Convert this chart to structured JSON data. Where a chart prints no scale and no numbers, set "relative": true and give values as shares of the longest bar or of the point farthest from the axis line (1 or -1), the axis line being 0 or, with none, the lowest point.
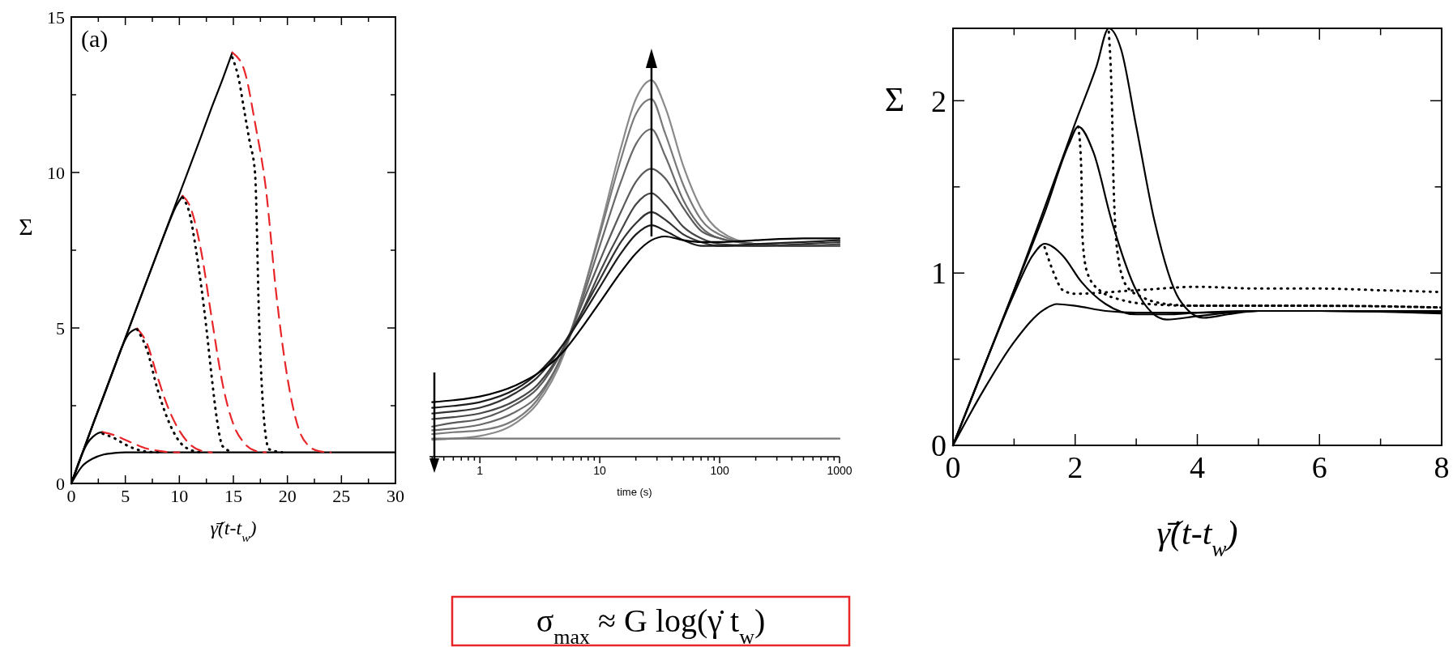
{
  "chart_data": [
    {
      "type": "line",
      "xlabel": "γ̇̄(t-t$_{w}$)",
      "ylabel": "Σ",
      "annotations": [
        "(a)"
      ],
      "xlim": [
        0,
        30
      ],
      "ylim": [
        0,
        15
      ],
      "xticks": [
        0,
        {
          "value": 2.5,
          "label": null
        },
        5,
        {
          "value": 7.5,
          "label": null
        },
        10,
        {
          "value": 12.5,
          "label": null
        },
        15,
        {
          "value": 17.5,
          "label": null
        },
        20,
        {
          "value": 22.5,
          "label": null
        },
        25,
        {
          "value": 27.5,
          "label": null
        },
        30
      ],
      "yticks": [
        0,
        {
          "value": 2.5,
          "label": null
        },
        5,
        {
          "value": 7.5,
          "label": null
        },
        10,
        {
          "value": 12.5,
          "label": null
        },
        15
      ],
      "series": [
        {
          "color": "#000000",
          "line_style": "solid",
          "x": [
            0,
            1,
            2,
            3,
            4,
            5,
            7,
            10,
            15,
            20,
            30
          ],
          "values": [
            0,
            0.55,
            0.8,
            0.93,
            0.98,
            1.0,
            1.0,
            1.0,
            1.0,
            1.0,
            1.0
          ]
        },
        {
          "color": "#000000",
          "line_style": "solid",
          "x": [
            0,
            0.5,
            1,
            1.5,
            2,
            2.5,
            2.9
          ],
          "values": [
            0,
            0.5,
            0.95,
            1.3,
            1.5,
            1.62,
            1.65
          ]
        },
        {
          "color": "#000000",
          "line_style": "solid",
          "x": [
            0,
            1,
            2,
            3,
            4,
            4.7,
            5.3,
            6.1
          ],
          "values": [
            0,
            0.95,
            1.9,
            2.8,
            3.75,
            4.4,
            4.8,
            4.98
          ]
        },
        {
          "color": "#000000",
          "line_style": "solid",
          "x": [
            0,
            2,
            4,
            6,
            8,
            9,
            9.6,
            10.3
          ],
          "values": [
            0,
            1.9,
            3.75,
            5.6,
            7.45,
            8.35,
            8.85,
            9.25
          ]
        },
        {
          "color": "#000000",
          "line_style": "solid",
          "x": [
            0,
            2,
            4,
            6,
            8,
            10,
            12,
            13,
            14,
            14.9
          ],
          "values": [
            0,
            1.9,
            3.75,
            5.6,
            7.45,
            9.3,
            11.15,
            12.1,
            13.0,
            13.86
          ]
        },
        {
          "color": "#e8262a",
          "line_style": "dashed",
          "x": [
            2.9,
            4,
            5,
            6,
            7,
            8,
            9,
            10
          ],
          "values": [
            1.65,
            1.55,
            1.4,
            1.25,
            1.12,
            1.05,
            1.01,
            1.0
          ]
        },
        {
          "color": "#000000",
          "line_style": "dotted",
          "x": [
            2.9,
            4,
            5,
            6,
            7,
            8
          ],
          "values": [
            1.6,
            1.45,
            1.25,
            1.1,
            1.02,
            1.0
          ]
        },
        {
          "color": "#e8262a",
          "line_style": "dashed",
          "x": [
            6.1,
            7,
            8,
            9,
            10,
            11,
            12,
            13
          ],
          "values": [
            4.98,
            4.5,
            3.4,
            2.4,
            1.7,
            1.25,
            1.05,
            1.0
          ]
        },
        {
          "color": "#000000",
          "line_style": "dotted",
          "x": [
            6.1,
            7,
            8,
            9,
            10,
            11,
            12
          ],
          "values": [
            4.95,
            4.3,
            3.0,
            2.0,
            1.35,
            1.08,
            1.0
          ]
        },
        {
          "color": "#e8262a",
          "line_style": "dashed",
          "x": [
            10.3,
            11,
            12,
            13,
            14,
            15,
            16,
            17,
            18
          ],
          "values": [
            9.25,
            8.9,
            7.5,
            5.3,
            3.2,
            1.9,
            1.3,
            1.05,
            1.0
          ]
        },
        {
          "color": "#000000",
          "line_style": "dotted",
          "x": [
            10.3,
            11,
            11.5,
            12,
            12.5,
            13,
            13.5,
            14,
            15
          ],
          "values": [
            9.2,
            8.6,
            7.6,
            6.4,
            5.0,
            3.4,
            2.0,
            1.2,
            1.0
          ]
        },
        {
          "color": "#e8262a",
          "line_style": "dashed",
          "x": [
            14.9,
            16,
            17,
            18,
            19,
            20,
            21,
            22,
            23,
            24
          ],
          "values": [
            13.86,
            13.3,
            11.6,
            9.5,
            6.0,
            3.4,
            1.8,
            1.2,
            1.03,
            1.0
          ]
        },
        {
          "color": "#000000",
          "line_style": "dotted",
          "x": [
            14.9,
            15.5,
            16,
            16.5,
            17,
            17.4,
            17.8,
            18.3,
            19.5
          ],
          "values": [
            13.7,
            13.0,
            12.0,
            11.0,
            10.0,
            5.0,
            2.2,
            1.1,
            1.0
          ]
        }
      ]
    },
    {
      "type": "line",
      "xlabel": "time (s)",
      "relative": true,
      "log": "x",
      "annotations": [
        "σ$_{max}$ ≈ G log(γ̇ t$_{w}$)"
      ],
      "xlim": [
        0.38,
        1000
      ],
      "xticks": [
        {
          "value": 0.4,
          "label": null
        },
        {
          "value": 0.5,
          "label": null
        },
        {
          "value": 0.6,
          "label": null
        },
        {
          "value": 0.7,
          "label": null
        },
        {
          "value": 0.8,
          "label": null
        },
        {
          "value": 0.9,
          "label": null
        },
        1,
        {
          "value": 2,
          "label": null
        },
        {
          "value": 3,
          "label": null
        },
        {
          "value": 4,
          "label": null
        },
        {
          "value": 5,
          "label": null
        },
        {
          "value": 6,
          "label": null
        },
        {
          "value": 7,
          "label": null
        },
        {
          "value": 8,
          "label": null
        },
        {
          "value": 9,
          "label": null
        },
        10,
        {
          "value": 20,
          "label": null
        },
        {
          "value": 30,
          "label": null
        },
        {
          "value": 40,
          "label": null
        },
        {
          "value": 50,
          "label": null
        },
        {
          "value": 60,
          "label": null
        },
        {
          "value": 70,
          "label": null
        },
        {
          "value": 80,
          "label": null
        },
        {
          "value": 90,
          "label": null
        },
        100,
        {
          "value": 200,
          "label": null
        },
        {
          "value": 300,
          "label": null
        },
        {
          "value": 400,
          "label": null
        },
        {
          "value": 500,
          "label": null
        },
        {
          "value": 600,
          "label": null
        },
        {
          "value": 700,
          "label": null
        },
        {
          "value": 800,
          "label": null
        },
        {
          "value": 900,
          "label": null
        },
        1000
      ],
      "series": [
        {
          "color": "#8a8a8a",
          "x": [
            0.4,
            0.6,
            1,
            2,
            3,
            5,
            7,
            10,
            15,
            20,
            27,
            35,
            50,
            70,
            100,
            200,
            500,
            1000
          ],
          "values": [
            0.045,
            0.048,
            0.055,
            0.09,
            0.14,
            0.27,
            0.42,
            0.6,
            0.82,
            0.95,
            1.0,
            0.93,
            0.77,
            0.66,
            0.6,
            0.565,
            0.56,
            0.56
          ]
        },
        {
          "color": "#7a7a7a",
          "x": [
            0.4,
            0.6,
            1,
            2,
            3,
            5,
            7,
            10,
            15,
            20,
            27,
            35,
            50,
            70,
            100,
            200,
            500,
            1000
          ],
          "values": [
            0.06,
            0.065,
            0.07,
            0.1,
            0.15,
            0.28,
            0.42,
            0.59,
            0.79,
            0.91,
            0.95,
            0.86,
            0.72,
            0.63,
            0.59,
            0.565,
            0.56,
            0.56
          ]
        },
        {
          "color": "#6a6a6a",
          "x": [
            0.4,
            0.6,
            1,
            2,
            3,
            5,
            7,
            10,
            15,
            20,
            27,
            35,
            50,
            70,
            100,
            200,
            500,
            1000
          ],
          "values": [
            0.07,
            0.075,
            0.085,
            0.12,
            0.16,
            0.28,
            0.41,
            0.56,
            0.73,
            0.83,
            0.87,
            0.8,
            0.68,
            0.61,
            0.58,
            0.565,
            0.56,
            0.56
          ]
        },
        {
          "color": "#5a5a5a",
          "x": [
            0.4,
            0.6,
            1,
            2,
            3,
            5,
            7,
            10,
            15,
            20,
            27,
            35,
            50,
            70,
            100,
            200,
            500,
            1000
          ],
          "values": [
            0.08,
            0.09,
            0.1,
            0.14,
            0.18,
            0.29,
            0.4,
            0.52,
            0.65,
            0.73,
            0.765,
            0.74,
            0.66,
            0.6,
            0.58,
            0.565,
            0.56,
            0.56
          ]
        },
        {
          "color": "#474747",
          "x": [
            0.4,
            0.6,
            1,
            2,
            3,
            5,
            7,
            10,
            15,
            20,
            27,
            35,
            50,
            70,
            100,
            200,
            500,
            1000
          ],
          "values": [
            0.1,
            0.105,
            0.115,
            0.15,
            0.19,
            0.29,
            0.38,
            0.49,
            0.6,
            0.67,
            0.7,
            0.67,
            0.61,
            0.58,
            0.565,
            0.56,
            0.56,
            0.565
          ]
        },
        {
          "color": "#333333",
          "x": [
            0.4,
            0.6,
            1,
            2,
            3,
            5,
            7,
            10,
            15,
            20,
            27,
            35,
            50,
            70,
            100,
            200,
            500,
            1000
          ],
          "values": [
            0.115,
            0.12,
            0.13,
            0.17,
            0.21,
            0.3,
            0.38,
            0.47,
            0.57,
            0.62,
            0.65,
            0.63,
            0.59,
            0.57,
            0.56,
            0.56,
            0.565,
            0.57
          ]
        },
        {
          "color": "#1c1c1c",
          "x": [
            0.4,
            0.6,
            1,
            2,
            3,
            5,
            7,
            10,
            15,
            20,
            27,
            35,
            50,
            70,
            100,
            200,
            500,
            1000
          ],
          "values": [
            0.13,
            0.135,
            0.145,
            0.18,
            0.22,
            0.3,
            0.37,
            0.45,
            0.54,
            0.59,
            0.615,
            0.6,
            0.575,
            0.56,
            0.56,
            0.565,
            0.57,
            0.575
          ]
        },
        {
          "color": "#000000",
          "x": [
            0.4,
            0.6,
            1,
            2,
            3,
            5,
            7,
            10,
            15,
            20,
            27,
            35,
            50,
            70,
            100,
            200,
            500,
            1000
          ],
          "values": [
            0.145,
            0.15,
            0.16,
            0.19,
            0.22,
            0.28,
            0.34,
            0.41,
            0.49,
            0.54,
            0.575,
            0.585,
            0.575,
            0.57,
            0.57,
            0.575,
            0.58,
            0.58
          ]
        },
        {
          "color": "#777777",
          "x": [
            0.4,
            1000
          ],
          "values": [
            0.048,
            0.048
          ]
        }
      ]
    },
    {
      "type": "line",
      "xlabel": "γ̇̄(t-t$_{w}$)",
      "ylabel": "Σ",
      "xlim": [
        0,
        8
      ],
      "ylim": [
        0,
        2.42
      ],
      "xticks": [
        0,
        {
          "value": 1,
          "label": null
        },
        2,
        {
          "value": 3,
          "label": null
        },
        4,
        {
          "value": 5,
          "label": null
        },
        6,
        {
          "value": 7,
          "label": null
        },
        8
      ],
      "yticks": [
        0,
        {
          "value": 0.5,
          "label": null
        },
        1,
        {
          "value": 1.5,
          "label": null
        },
        2
      ],
      "series": [
        {
          "color": "#000000",
          "line_style": "solid",
          "x": [
            0,
            0.5,
            1,
            1.5,
            1.7,
            2,
            2.5,
            3,
            3.5,
            4,
            5,
            6,
            7,
            8
          ],
          "values": [
            0,
            0.32,
            0.6,
            0.79,
            0.82,
            0.81,
            0.78,
            0.77,
            0.77,
            0.77,
            0.78,
            0.78,
            0.78,
            0.78
          ]
        },
        {
          "color": "#000000",
          "line_style": "solid",
          "x": [
            0,
            0.5,
            1,
            1.3,
            1.5,
            1.8,
            2.1,
            2.5,
            3,
            3.5,
            4,
            5,
            6,
            8
          ],
          "values": [
            0,
            0.45,
            0.88,
            1.1,
            1.17,
            1.1,
            0.95,
            0.82,
            0.76,
            0.76,
            0.77,
            0.78,
            0.78,
            0.77
          ]
        },
        {
          "color": "#000000",
          "line_style": "solid",
          "x": [
            0,
            0.5,
            1,
            1.5,
            1.9,
            2.05,
            2.3,
            2.6,
            3,
            3.5,
            4,
            5,
            6,
            8
          ],
          "values": [
            0,
            0.45,
            0.9,
            1.35,
            1.75,
            1.85,
            1.7,
            1.3,
            0.9,
            0.73,
            0.75,
            0.78,
            0.78,
            0.765
          ]
        },
        {
          "color": "#000000",
          "line_style": "solid",
          "x": [
            0,
            0.5,
            1,
            1.5,
            2,
            2.35,
            2.55,
            2.75,
            3,
            3.3,
            3.7,
            4.1,
            4.5,
            5,
            6,
            8
          ],
          "values": [
            0,
            0.45,
            0.9,
            1.38,
            1.87,
            2.2,
            2.42,
            2.3,
            1.85,
            1.3,
            0.85,
            0.74,
            0.76,
            0.78,
            0.78,
            0.775
          ]
        },
        {
          "color": "#000000",
          "line_style": "dotted",
          "x": [
            1.5,
            1.65,
            1.8,
            2,
            3,
            4,
            5,
            6,
            7,
            8
          ],
          "values": [
            1.15,
            1.0,
            0.9,
            0.88,
            0.9,
            0.92,
            0.91,
            0.91,
            0.9,
            0.89
          ]
        },
        {
          "color": "#000000",
          "line_style": "dotted",
          "x": [
            2.05,
            2.1,
            2.12,
            2.2,
            2.4,
            2.8,
            3.2,
            4,
            5,
            6,
            8
          ],
          "values": [
            1.85,
            1.6,
            1.2,
            1.0,
            0.9,
            0.84,
            0.82,
            0.81,
            0.81,
            0.81,
            0.8
          ]
        },
        {
          "color": "#000000",
          "line_style": "dotted",
          "x": [
            2.55,
            2.6,
            2.63,
            2.7,
            2.85,
            3.1,
            3.5,
            4,
            5,
            6,
            8
          ],
          "values": [
            2.4,
            2.0,
            1.5,
            1.1,
            0.92,
            0.86,
            0.82,
            0.81,
            0.81,
            0.81,
            0.8
          ]
        }
      ]
    }
  ]
}
